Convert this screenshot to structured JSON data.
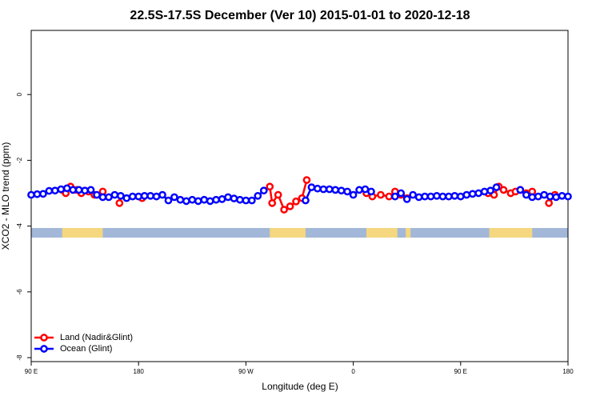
{
  "chart_data": {
    "type": "line",
    "title": "22.5S-17.5S December (Ver 10)   2015-01-01 to 2020-12-18",
    "x_label": "Longitude (deg E)",
    "y_label": "XCO2 - MLO trend (ppm)",
    "xlim": [
      90,
      540
    ],
    "ylim": [
      -8.12,
      1.95
    ],
    "xticks": [
      {
        "value": 90,
        "label": "90 E"
      },
      180,
      {
        "value": 270,
        "label": "90 W"
      },
      {
        "value": 360,
        "label": "0"
      },
      {
        "value": 450,
        "label": "90 E"
      },
      {
        "value": 540,
        "label": "180"
      }
    ],
    "yticks": [
      -8,
      -6,
      -4,
      -2,
      0
    ],
    "legend": "bottom-left",
    "land_mask": [
      [
        116,
        150
      ],
      [
        290,
        320
      ],
      [
        371,
        397
      ],
      [
        404,
        408
      ],
      [
        474,
        510
      ]
    ],
    "series": [
      {
        "name": "Land (Nadir&Glint)",
        "color": "#ff0000",
        "x": [
          116,
          119,
          123,
          128,
          132,
          138,
          143,
          150,
          null,
          164,
          null,
          183,
          null,
          290,
          292,
          297,
          302,
          307,
          312,
          317,
          321,
          null,
          371,
          376,
          383,
          390,
          395,
          400,
          405,
          null,
          473,
          478,
          482,
          486,
          492,
          496,
          500,
          505,
          510,
          null,
          524,
          529
        ],
        "values": [
          -2.9,
          -3.0,
          -2.8,
          -2.9,
          -3.0,
          -2.95,
          -3.05,
          -2.95,
          null,
          -3.3,
          null,
          -3.15,
          null,
          -2.8,
          -3.3,
          -3.05,
          -3.5,
          -3.4,
          -3.25,
          -3.15,
          -2.6,
          null,
          -3.0,
          -3.1,
          -3.05,
          -3.1,
          -2.95,
          -3.05,
          -3.15,
          null,
          -3.0,
          -3.05,
          -2.8,
          -2.9,
          -3.0,
          -2.95,
          -2.9,
          -3.0,
          -2.95,
          null,
          -3.3,
          -3.05
        ]
      },
      {
        "name": "Ocean (Glint)",
        "color": "#0000ff",
        "x": [
          90,
          95,
          100,
          105,
          110,
          115,
          120,
          125,
          130,
          135,
          140,
          145,
          150,
          155,
          160,
          165,
          170,
          175,
          180,
          185,
          190,
          195,
          200,
          205,
          210,
          215,
          220,
          225,
          230,
          235,
          240,
          245,
          250,
          255,
          260,
          265,
          270,
          275,
          280,
          285,
          290,
          295,
          300,
          305,
          310,
          315,
          320,
          325,
          330,
          335,
          340,
          345,
          350,
          355,
          360,
          365,
          370,
          375,
          380,
          385,
          390,
          395,
          400,
          405,
          410,
          415,
          420,
          425,
          430,
          435,
          440,
          445,
          450,
          455,
          460,
          465,
          470,
          475,
          480,
          485,
          490,
          495,
          500,
          505,
          510,
          515,
          520,
          525,
          530,
          535,
          540
        ],
        "values": [
          -3.05,
          -3.03,
          -3.02,
          -2.93,
          -2.92,
          -2.88,
          -2.85,
          -2.9,
          -2.9,
          -2.92,
          -2.9,
          -3.05,
          -3.12,
          -3.12,
          -3.05,
          -3.08,
          -3.15,
          -3.1,
          -3.1,
          -3.08,
          -3.08,
          -3.1,
          -3.05,
          -3.22,
          -3.12,
          -3.2,
          -3.24,
          -3.2,
          -3.24,
          -3.2,
          -3.24,
          -3.2,
          -3.18,
          -3.12,
          -3.16,
          -3.2,
          -3.22,
          -3.22,
          -3.08,
          -2.92,
          null,
          null,
          null,
          null,
          null,
          null,
          -3.22,
          -2.82,
          -2.86,
          -2.88,
          -2.88,
          -2.9,
          -2.92,
          -2.95,
          -3.05,
          -2.9,
          -2.88,
          -2.95,
          null,
          null,
          null,
          -3.1,
          -3.0,
          -3.18,
          -3.05,
          -3.12,
          -3.1,
          -3.1,
          -3.08,
          -3.1,
          -3.1,
          -3.08,
          -3.1,
          -3.05,
          -3.02,
          -3.0,
          -2.95,
          -2.92,
          -2.82,
          null,
          null,
          null,
          -2.9,
          -3.05,
          -3.12,
          -3.1,
          -3.05,
          -3.1,
          -3.12,
          -3.08,
          -3.1
        ]
      }
    ]
  }
}
